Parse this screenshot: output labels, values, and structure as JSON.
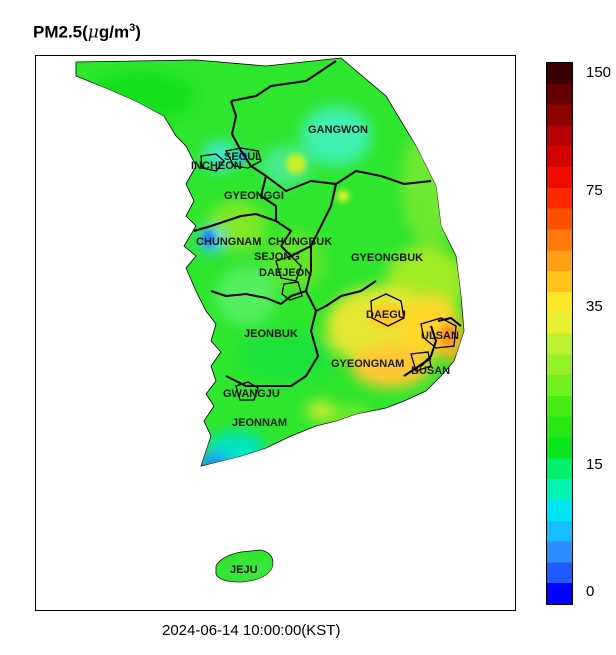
{
  "title": {
    "prefix": "PM2.5(",
    "mu": "μ",
    "unit_rest": "g/m",
    "sup": "3",
    "suffix": ")"
  },
  "timestamp": "2024-06-14 10:00:00(KST)",
  "regions": [
    {
      "id": "gangwon",
      "label": "GANGWON"
    },
    {
      "id": "seoul",
      "label": "SEOUL"
    },
    {
      "id": "incheon",
      "label": "INCHEON"
    },
    {
      "id": "gyeonggi",
      "label": "GYEONGGI"
    },
    {
      "id": "chungnam",
      "label": "CHUNGNAM"
    },
    {
      "id": "chungbuk",
      "label": "CHUNGBUK"
    },
    {
      "id": "sejong",
      "label": "SEJONG"
    },
    {
      "id": "daejeon",
      "label": "DAEJEON"
    },
    {
      "id": "gyeongbuk",
      "label": "GYEONGBUK"
    },
    {
      "id": "daegu",
      "label": "DAEGU"
    },
    {
      "id": "jeonbuk",
      "label": "JEONBUK"
    },
    {
      "id": "ulsan",
      "label": "ULSAN"
    },
    {
      "id": "gyeongnam",
      "label": "GYEONGNAM"
    },
    {
      "id": "busan",
      "label": "BUSAN"
    },
    {
      "id": "gwangju",
      "label": "GWANGJU"
    },
    {
      "id": "jeonnam",
      "label": "JEONNAM"
    },
    {
      "id": "jeju",
      "label": "JEJU"
    }
  ],
  "colorbar": {
    "ticks": [
      "150",
      "75",
      "35",
      "15",
      "0"
    ],
    "colors": [
      "#0000ff",
      "#1e5aff",
      "#2d8cff",
      "#14beff",
      "#00e6f0",
      "#00f5b4",
      "#00f06e",
      "#0ae61e",
      "#28e614",
      "#46eb14",
      "#6ef01e",
      "#96f028",
      "#bef032",
      "#e6f032",
      "#ffe628",
      "#ffc31e",
      "#ffa014",
      "#ff780a",
      "#ff5000",
      "#ff2800",
      "#f00a00",
      "#d20000",
      "#b40000",
      "#8c0000",
      "#640000",
      "#3c0000"
    ]
  },
  "colors": {
    "background_field": "#2ee62e",
    "border": "#000000"
  }
}
